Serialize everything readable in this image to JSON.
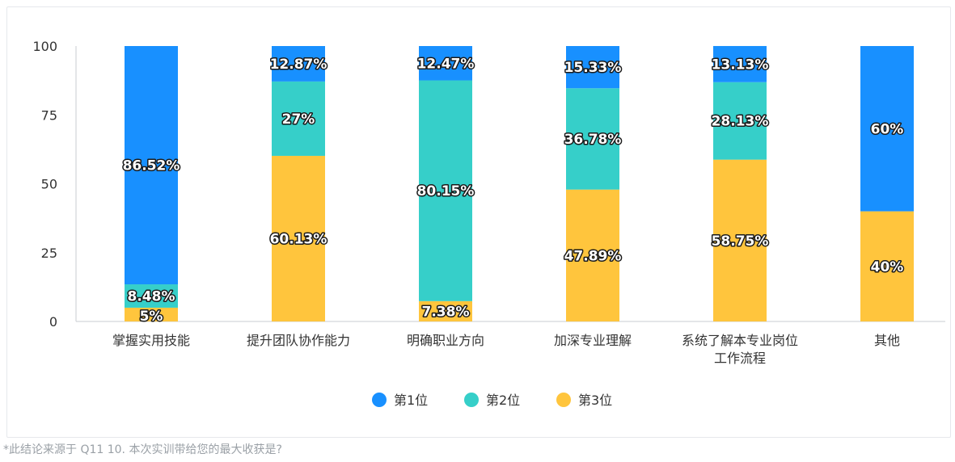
{
  "chart_data": {
    "type": "bar",
    "stacked": true,
    "percent": true,
    "categories": [
      "掌握实用技能",
      "提升团队协作能力",
      "明确职业方向",
      "加深专业理解",
      "系统了解本专业岗位工作流程",
      "其他"
    ],
    "category_lines": [
      [
        "掌握实用技能"
      ],
      [
        "提升团队协作能力"
      ],
      [
        "明确职业方向"
      ],
      [
        "加深专业理解"
      ],
      [
        "系统了解本专业岗位",
        "工作流程"
      ],
      [
        "其他"
      ]
    ],
    "series": [
      {
        "name": "第3位",
        "color": "#FFC53D",
        "values": [
          5,
          60.13,
          7.38,
          47.89,
          58.75,
          40
        ],
        "labels": [
          "5%",
          "60.13%",
          "7.38%",
          "47.89%",
          "58.75%",
          "40%"
        ]
      },
      {
        "name": "第2位",
        "color": "#36CFC9",
        "values": [
          8.48,
          27,
          80.15,
          36.78,
          28.13,
          0
        ],
        "labels": [
          "8.48%",
          "27%",
          "80.15%",
          "36.78%",
          "28.13%",
          ""
        ]
      },
      {
        "name": "第1位",
        "color": "#1890FF",
        "values": [
          86.52,
          12.87,
          12.47,
          15.33,
          13.13,
          60
        ],
        "labels": [
          "86.52%",
          "12.87%",
          "12.47%",
          "15.33%",
          "13.13%",
          "60%"
        ]
      }
    ],
    "legend_order": [
      "第1位",
      "第2位",
      "第3位"
    ],
    "yticks": [
      "0",
      "25",
      "50",
      "75",
      "100"
    ],
    "ylim": [
      0,
      100
    ],
    "legend_position": "bottom",
    "grid": false
  },
  "footnote": "*此结论来源于 Q11 10. 本次实训带给您的最大收获是?"
}
